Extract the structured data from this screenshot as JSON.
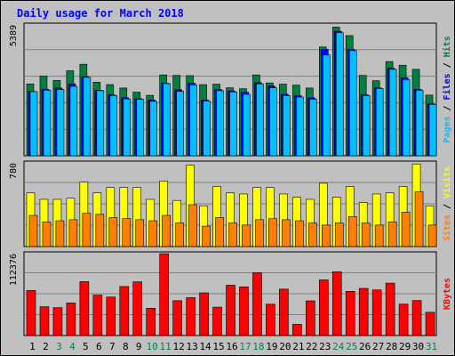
{
  "chart_data": {
    "type": "bar",
    "title": "Daily usage for March 2018",
    "categories": [
      "1",
      "2",
      "3",
      "4",
      "5",
      "6",
      "7",
      "8",
      "9",
      "10",
      "11",
      "12",
      "13",
      "14",
      "15",
      "16",
      "17",
      "18",
      "19",
      "20",
      "21",
      "22",
      "23",
      "24",
      "25",
      "26",
      "27",
      "28",
      "29",
      "30",
      "31"
    ],
    "weekend_days": [
      3,
      4,
      10,
      11,
      17,
      18,
      24,
      25,
      31
    ],
    "colors": {
      "hits": "#008040",
      "files": "#0000ff",
      "pages": "#00c0ff",
      "visits": "#ffff00",
      "sites": "#ff8000",
      "kbytes": "#ff0000",
      "title": "#0000ff",
      "weekend": "#00805c"
    },
    "panels": [
      {
        "id": "hits-files-pages",
        "ymax_label": "5389",
        "ylim": [
          0,
          5389
        ],
        "right_label": [
          {
            "text": "Pages",
            "color": "#00c0ff"
          },
          {
            "text": " / ",
            "color": "#000000"
          },
          {
            "text": "Files",
            "color": "#0000ff"
          },
          {
            "text": " / ",
            "color": "#000000"
          },
          {
            "text": "Hits",
            "color": "#008040"
          }
        ],
        "series": [
          {
            "key": "hits",
            "values": [
              2960,
              3280,
              3100,
              3500,
              3770,
              3030,
              2930,
              2790,
              2620,
              2490,
              3330,
              3310,
              3300,
              2930,
              2950,
              2800,
              2760,
              3330,
              3000,
              2950,
              2910,
              2790,
              4480,
              5300,
              4950,
              3310,
              3090,
              3880,
              3730,
              3560,
              2500
            ]
          },
          {
            "key": "files",
            "values": [
              2650,
              2740,
              2790,
              2960,
              3260,
              2700,
              2510,
              2390,
              2350,
              2300,
              2990,
              2720,
              2990,
              2300,
              2730,
              2670,
              2620,
              3010,
              2870,
              2530,
              2470,
              2390,
              4380,
              5130,
              4380,
              2510,
              2800,
              3600,
              3210,
              2740,
              2140
            ]
          },
          {
            "key": "pages",
            "values": [
              2640,
              2700,
              2730,
              2860,
              3230,
              2680,
              2480,
              2340,
              2320,
              2240,
              2970,
              2650,
              2920,
              2250,
              2680,
              2630,
              2530,
              2960,
              2800,
              2480,
              2420,
              2330,
              4150,
              5070,
              4330,
              2480,
              2770,
              3560,
              3140,
              2700,
              2110
            ]
          }
        ]
      },
      {
        "id": "visits-sites",
        "ymax_label": "780",
        "ylim": [
          0,
          780
        ],
        "right_label": [
          {
            "text": "Sites",
            "color": "#ff8000"
          },
          {
            "text": " / ",
            "color": "#000000"
          },
          {
            "text": "Visits",
            "color": "#ffff00"
          }
        ],
        "series": [
          {
            "key": "visits",
            "values": [
              500,
              440,
              440,
              450,
              600,
              500,
              550,
              550,
              550,
              440,
              610,
              430,
              760,
              380,
              560,
              500,
              490,
              550,
              550,
              490,
              460,
              440,
              590,
              460,
              560,
              410,
              490,
              500,
              560,
              770,
              380
            ]
          },
          {
            "key": "sites",
            "values": [
              290,
              230,
              240,
              250,
              310,
              300,
              270,
              260,
              250,
              240,
              290,
              220,
              390,
              190,
              270,
              220,
              200,
              250,
              260,
              250,
              240,
              220,
              200,
              220,
              280,
              220,
              200,
              230,
              320,
              510,
              200
            ]
          }
        ]
      },
      {
        "id": "kbytes",
        "ymax_label": "112376",
        "ylim": [
          0,
          112376
        ],
        "right_label": [
          {
            "text": "KBytes",
            "color": "#ff0000"
          }
        ],
        "series": [
          {
            "key": "kbytes",
            "values": [
              61800,
              39500,
              38300,
              44700,
              74000,
              55500,
              52800,
              67300,
              73700,
              37500,
              112300,
              47800,
              52000,
              58600,
              39000,
              69100,
              66800,
              86300,
              43000,
              63700,
              15400,
              47600,
              76400,
              87500,
              60700,
              64700,
              62600,
              71900,
              43100,
              48100,
              31900
            ]
          }
        ]
      }
    ]
  }
}
